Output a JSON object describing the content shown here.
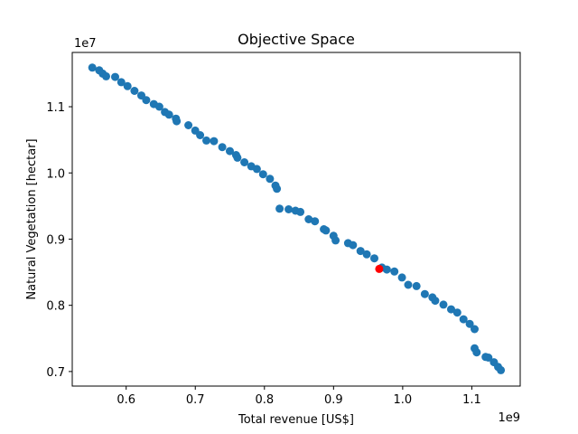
{
  "chart_data": {
    "type": "scatter",
    "title": "Objective Space",
    "xlabel": "Total revenue [US$]",
    "ylabel": "Natural Vegetation [hectar]",
    "x_offset_label": "1e9",
    "y_offset_label": "1e7",
    "x_multiplier": 1000000000,
    "y_multiplier": 10000000,
    "xlim": [
      0.522,
      1.17
    ],
    "ylim": [
      0.678,
      1.182
    ],
    "x_ticks": [
      0.6,
      0.7,
      0.8,
      0.9,
      1.0,
      1.1
    ],
    "x_tick_labels": [
      "0.6",
      "0.7",
      "0.8",
      "0.9",
      "1.0",
      "1.1"
    ],
    "y_ticks": [
      0.7,
      0.8,
      0.9,
      1.0,
      1.1
    ],
    "y_tick_labels": [
      "0.7",
      "0.8",
      "0.9",
      "1.0",
      "1.1"
    ],
    "grid": false,
    "series": [
      {
        "color": "#1f77b4",
        "points": [
          [
            0.551,
            1.159
          ],
          [
            0.561,
            1.155
          ],
          [
            0.566,
            1.15
          ],
          [
            0.571,
            1.146
          ],
          [
            0.584,
            1.145
          ],
          [
            0.593,
            1.137
          ],
          [
            0.602,
            1.131
          ],
          [
            0.612,
            1.124
          ],
          [
            0.622,
            1.117
          ],
          [
            0.629,
            1.11
          ],
          [
            0.64,
            1.104
          ],
          [
            0.648,
            1.1
          ],
          [
            0.656,
            1.092
          ],
          [
            0.662,
            1.088
          ],
          [
            0.672,
            1.082
          ],
          [
            0.673,
            1.078
          ],
          [
            0.69,
            1.072
          ],
          [
            0.7,
            1.064
          ],
          [
            0.707,
            1.057
          ],
          [
            0.716,
            1.049
          ],
          [
            0.727,
            1.048
          ],
          [
            0.739,
            1.039
          ],
          [
            0.75,
            1.033
          ],
          [
            0.759,
            1.027
          ],
          [
            0.761,
            1.023
          ],
          [
            0.771,
            1.016
          ],
          [
            0.781,
            1.01
          ],
          [
            0.789,
            1.006
          ],
          [
            0.798,
            0.998
          ],
          [
            0.808,
            0.991
          ],
          [
            0.816,
            0.981
          ],
          [
            0.818,
            0.976
          ],
          [
            0.822,
            0.946
          ],
          [
            0.835,
            0.945
          ],
          [
            0.845,
            0.943
          ],
          [
            0.852,
            0.941
          ],
          [
            0.864,
            0.93
          ],
          [
            0.873,
            0.927
          ],
          [
            0.886,
            0.915
          ],
          [
            0.889,
            0.913
          ],
          [
            0.9,
            0.905
          ],
          [
            0.903,
            0.898
          ],
          [
            0.921,
            0.894
          ],
          [
            0.928,
            0.891
          ],
          [
            0.939,
            0.882
          ],
          [
            0.948,
            0.877
          ],
          [
            0.959,
            0.871
          ],
          [
            0.97,
            0.857
          ],
          [
            0.977,
            0.854
          ],
          [
            0.988,
            0.851
          ],
          [
            0.999,
            0.842
          ],
          [
            1.008,
            0.831
          ],
          [
            1.02,
            0.829
          ],
          [
            1.032,
            0.817
          ],
          [
            1.043,
            0.812
          ],
          [
            1.047,
            0.807
          ],
          [
            1.059,
            0.801
          ],
          [
            1.07,
            0.794
          ],
          [
            1.079,
            0.789
          ],
          [
            1.088,
            0.779
          ],
          [
            1.097,
            0.772
          ],
          [
            1.104,
            0.764
          ],
          [
            1.104,
            0.735
          ],
          [
            1.107,
            0.729
          ],
          [
            1.12,
            0.722
          ],
          [
            1.124,
            0.721
          ],
          [
            1.132,
            0.714
          ],
          [
            1.138,
            0.707
          ],
          [
            1.142,
            0.702
          ]
        ]
      },
      {
        "color": "#ff0000",
        "points": [
          [
            0.966,
            0.855
          ]
        ]
      }
    ]
  }
}
